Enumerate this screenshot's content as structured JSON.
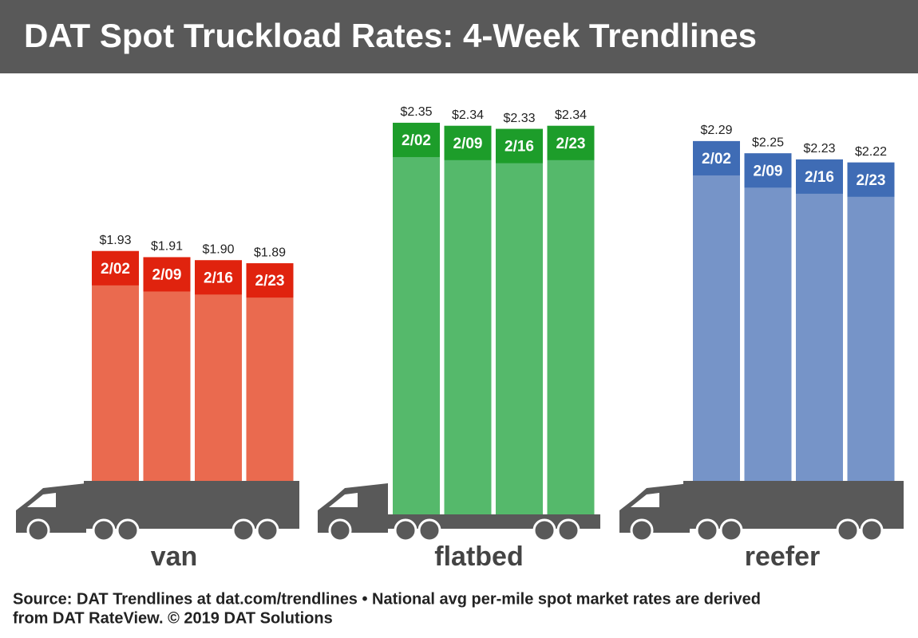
{
  "title": "DAT Spot Truckload Rates: 4-Week Trendlines",
  "source": [
    "Source: DAT Trendlines at dat.com/trendlines • National avg per-mile spot market rates are derived",
    "from DAT RateView. © 2019 DAT Solutions"
  ],
  "chart_data": [
    {
      "type": "bar",
      "name": "van",
      "categories": [
        "2/02",
        "2/09",
        "2/16",
        "2/23"
      ],
      "values": [
        1.93,
        1.91,
        1.9,
        1.89
      ],
      "value_labels": [
        "$1.93",
        "$1.91",
        "$1.90",
        "$1.89"
      ],
      "color": "#ea6a4f",
      "label_color": "#e0230e"
    },
    {
      "type": "bar",
      "name": "flatbed",
      "categories": [
        "2/02",
        "2/09",
        "2/16",
        "2/23"
      ],
      "values": [
        2.35,
        2.34,
        2.33,
        2.34
      ],
      "value_labels": [
        "$2.35",
        "$2.34",
        "$2.33",
        "$2.34"
      ],
      "color": "#55b96b",
      "label_color": "#1d9d2a"
    },
    {
      "type": "bar",
      "name": "reefer",
      "categories": [
        "2/02",
        "2/09",
        "2/16",
        "2/23"
      ],
      "values": [
        2.29,
        2.25,
        2.23,
        2.22
      ],
      "value_labels": [
        "$2.29",
        "$2.25",
        "$2.23",
        "$2.22"
      ],
      "color": "#7694c8",
      "label_color": "#3f6cb5"
    }
  ]
}
